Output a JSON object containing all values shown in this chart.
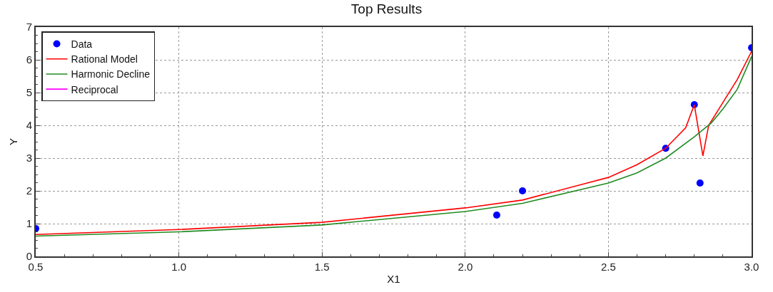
{
  "chart_data": {
    "type": "line",
    "title": "Top Results",
    "xlabel": "X1",
    "ylabel": "Y",
    "xlim": [
      0.5,
      3.0
    ],
    "ylim": [
      0,
      7
    ],
    "xticks": [
      {
        "value": 0.5,
        "label": "0.5"
      },
      {
        "value": 1.0,
        "label": "1.0"
      },
      {
        "value": 1.5,
        "label": "1.5"
      },
      {
        "value": 2.0,
        "label": "2.0"
      },
      {
        "value": 2.5,
        "label": "2.5"
      },
      {
        "value": 3.0,
        "label": "3.0"
      }
    ],
    "yticks": [
      0,
      1,
      2,
      3,
      4,
      5,
      6,
      7
    ],
    "grid": true,
    "legend": "top left",
    "series": [
      {
        "name": "Data",
        "type": "scatter",
        "marker": "circle",
        "color": "#0000ff",
        "x": [
          0.5,
          2.11,
          2.2,
          2.7,
          2.8,
          2.82,
          3.0
        ],
        "values": [
          0.85,
          1.26,
          2.0,
          3.3,
          4.63,
          2.24,
          6.37
        ]
      },
      {
        "name": "Rational Model",
        "line_style": "solid",
        "color": "#ff0000",
        "x": [
          0.5,
          1.0,
          1.5,
          2.0,
          2.2,
          2.5,
          2.6,
          2.7,
          2.77,
          2.8,
          2.83,
          2.85,
          2.9,
          2.95,
          3.0
        ],
        "values": [
          0.67,
          0.82,
          1.04,
          1.48,
          1.72,
          2.41,
          2.8,
          3.3,
          3.93,
          4.63,
          3.07,
          4.0,
          4.7,
          5.4,
          6.26
        ]
      },
      {
        "name": "Harmonic Decline",
        "line_style": "solid",
        "color": "#228b22",
        "x": [
          0.5,
          1.0,
          1.5,
          2.0,
          2.2,
          2.5,
          2.6,
          2.7,
          2.8,
          2.86,
          2.9,
          2.95,
          3.0
        ],
        "values": [
          0.62,
          0.75,
          0.96,
          1.37,
          1.62,
          2.24,
          2.55,
          3.0,
          3.65,
          4.08,
          4.5,
          5.1,
          6.1
        ]
      },
      {
        "name": "Reciprocal",
        "line_style": "solid",
        "color": "#ff00ff"
      }
    ]
  }
}
